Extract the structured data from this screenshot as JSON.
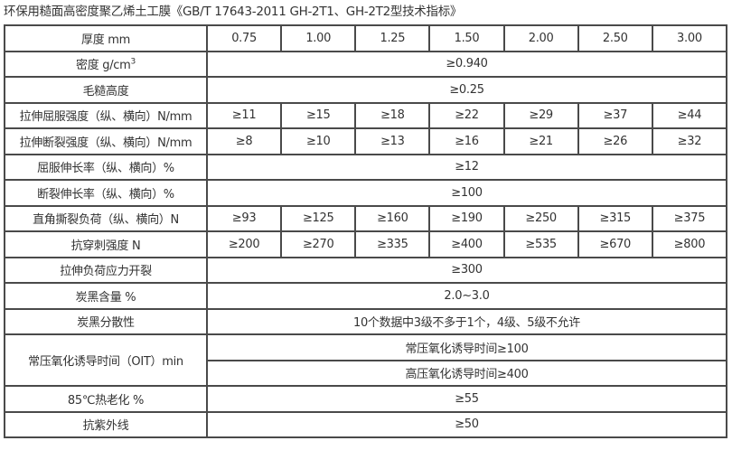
{
  "title": "环保用糙面高密度聚乙烯土工膜《GB/T 17643-2011 GH-2T1、GH-2T2型技术指标》",
  "header": {
    "label": "厚度 mm",
    "values": [
      "0.75",
      "1.00",
      "1.25",
      "1.50",
      "2.00",
      "2.50",
      "3.00"
    ]
  },
  "density": {
    "label": "密度 g/cm",
    "sup": "3",
    "value": "≥0.940"
  },
  "rows_span": [
    {
      "label": "毛糙高度",
      "value": "≥0.25"
    }
  ],
  "rows_multi": [
    {
      "label": "拉伸屈服强度（纵、横向）N/mm",
      "values": [
        "≥11",
        "≥15",
        "≥18",
        "≥22",
        "≥29",
        "≥37",
        "≥44"
      ]
    },
    {
      "label": "拉伸断裂强度（纵、横向）N/mm",
      "values": [
        "≥8",
        "≥10",
        "≥13",
        "≥16",
        "≥21",
        "≥26",
        "≥32"
      ]
    }
  ],
  "rows_span2": [
    {
      "label": "屈服伸长率（纵、横向）%",
      "value": "≥12"
    },
    {
      "label": "断裂伸长率（纵、横向）%",
      "value": "≥100"
    }
  ],
  "rows_multi2": [
    {
      "label": "直角撕裂负荷（纵、横向）N",
      "values": [
        "≥93",
        "≥125",
        "≥160",
        "≥190",
        "≥250",
        "≥315",
        "≥375"
      ]
    },
    {
      "label": "抗穿刺强度 N",
      "values": [
        "≥200",
        "≥270",
        "≥335",
        "≥400",
        "≥535",
        "≥670",
        "≥800"
      ]
    }
  ],
  "rows_span3": [
    {
      "label": "拉伸负荷应力开裂",
      "value": "≥300"
    },
    {
      "label": "炭黑含量 %",
      "value": "2.0~3.0"
    },
    {
      "label": "炭黑分散性",
      "value": "10个数据中3级不多于1个，4级、5级不允许"
    }
  ],
  "oit": {
    "label": "常压氧化诱导时间（OIT）min",
    "values": [
      "常压氧化诱导时间≥100",
      "高压氧化诱导时间≥400"
    ]
  },
  "rows_span4": [
    {
      "label": "85℃热老化 %",
      "value": "≥55"
    },
    {
      "label": "抗紫外线",
      "value": "≥50"
    }
  ]
}
